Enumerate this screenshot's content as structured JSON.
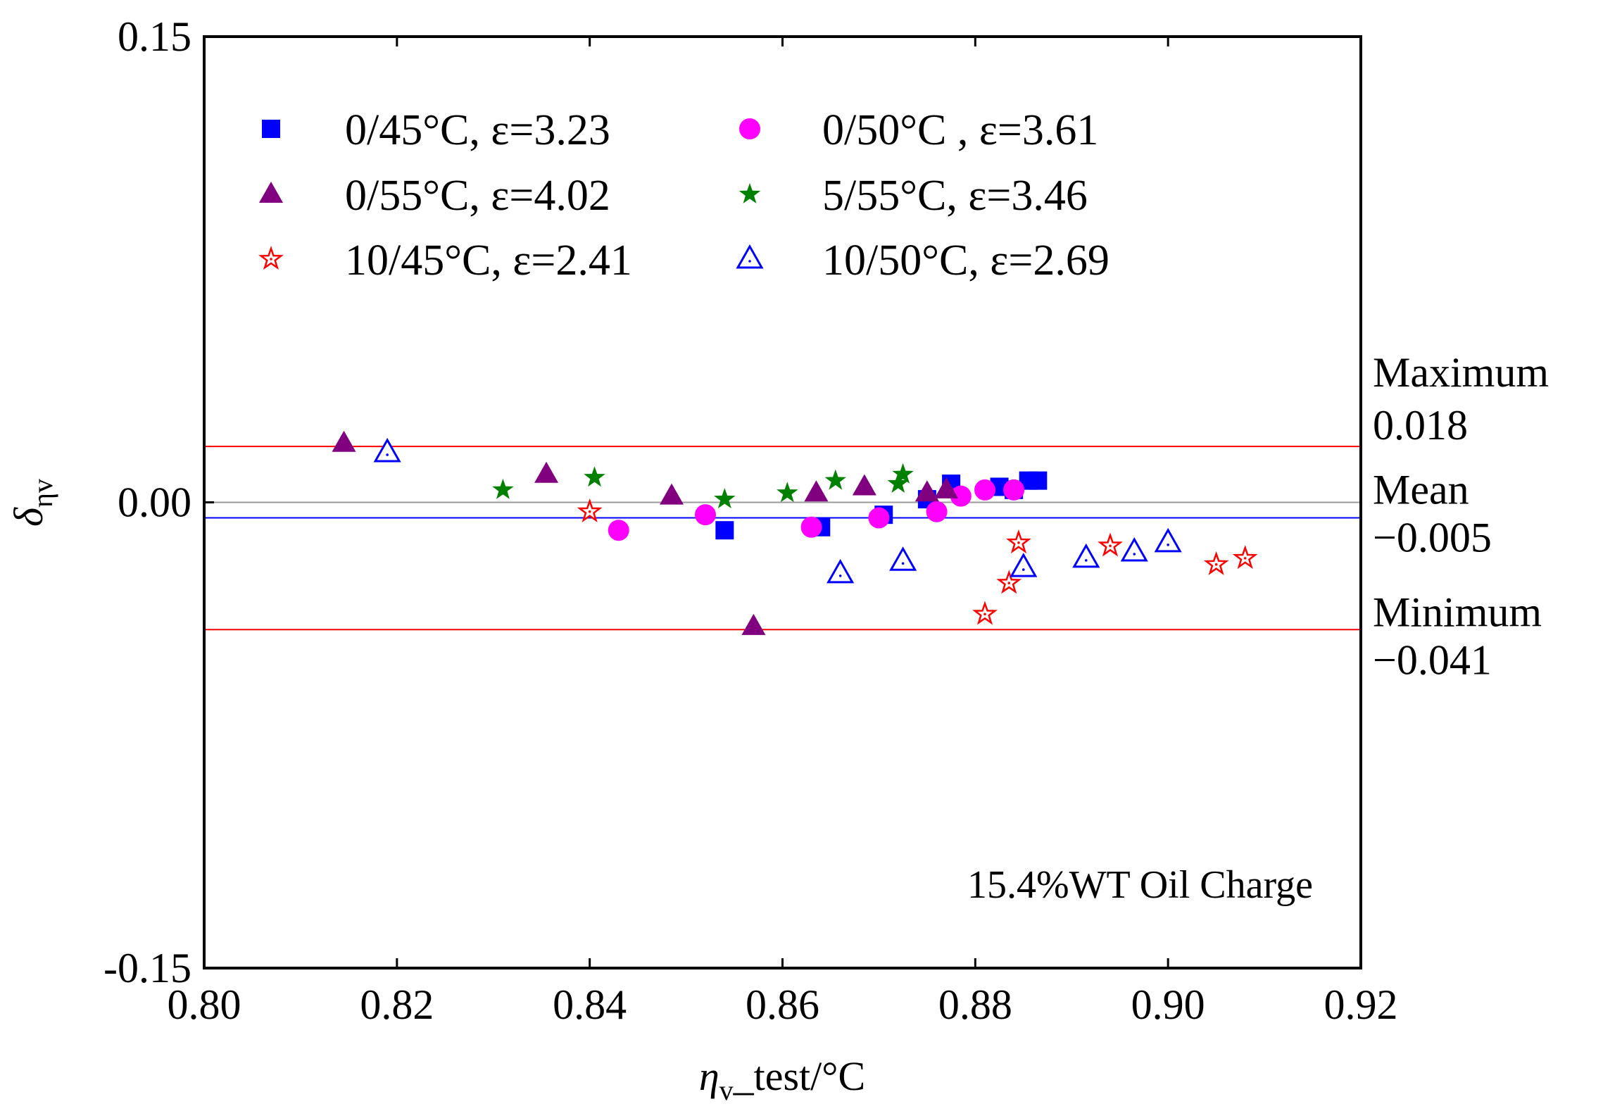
{
  "chart_data": {
    "type": "scatter",
    "title": "",
    "xlabel": "η",
    "xlabel_sub": "v",
    "xlabel_rest": "_test/°C",
    "ylabel": "δ",
    "ylabel_sub": "ηv",
    "xlim": [
      0.8,
      0.92
    ],
    "ylim": [
      -0.15,
      0.15
    ],
    "x_ticks": [
      "0.80",
      "0.82",
      "0.84",
      "0.86",
      "0.88",
      "0.90",
      "0.92"
    ],
    "y_ticks": [
      "0.15",
      "0.00",
      "-0.15"
    ],
    "annotation": "15.4%WT Oil Charge",
    "reference_lines": [
      {
        "name": "Maximum",
        "value": 0.018,
        "value_label": "0.018",
        "color": "#ff0000"
      },
      {
        "name": "Mean",
        "value": -0.005,
        "value_label": "−0.005",
        "color": "#0000ff"
      },
      {
        "name": "Minimum",
        "value": -0.041,
        "value_label": "−0.041",
        "color": "#ff0000"
      }
    ],
    "zero_line": {
      "value": 0.0,
      "color": "#9a9a9a"
    },
    "series": [
      {
        "name": "0/45°C, ε=3.23",
        "marker": "square",
        "filled": true,
        "color": "#0000ff",
        "x": [
          0.854,
          0.864,
          0.8705,
          0.875,
          0.8775,
          0.8825,
          0.884,
          0.8855,
          0.8865
        ],
        "y": [
          -0.009,
          -0.008,
          -0.004,
          0.001,
          0.006,
          0.005,
          0.004,
          0.007,
          0.007
        ]
      },
      {
        "name": "0/50°C , ε=3.61",
        "marker": "circle",
        "filled": true,
        "color": "#ff00ff",
        "x": [
          0.843,
          0.852,
          0.863,
          0.87,
          0.876,
          0.8785,
          0.881,
          0.884
        ],
        "y": [
          -0.009,
          -0.004,
          -0.008,
          -0.005,
          -0.003,
          0.002,
          0.004,
          0.004
        ]
      },
      {
        "name": "0/55°C, ε=4.02",
        "marker": "triangle",
        "filled": true,
        "color": "#800080",
        "x": [
          0.8145,
          0.8355,
          0.8485,
          0.857,
          0.8635,
          0.8685,
          0.875,
          0.877
        ],
        "y": [
          0.019,
          0.009,
          0.002,
          -0.04,
          0.003,
          0.005,
          0.003,
          0.004
        ]
      },
      {
        "name": "5/55°C, ε=3.46",
        "marker": "star",
        "filled": true,
        "color": "#008000",
        "x": [
          0.831,
          0.8405,
          0.854,
          0.8605,
          0.8655,
          0.872,
          0.8725
        ],
        "y": [
          0.004,
          0.008,
          0.001,
          0.003,
          0.007,
          0.006,
          0.009
        ]
      },
      {
        "name": "10/45°C, ε=2.41",
        "marker": "star",
        "filled": false,
        "color": "#ff0000",
        "x": [
          0.84,
          0.881,
          0.8835,
          0.8845,
          0.894,
          0.905,
          0.908
        ],
        "y": [
          -0.003,
          -0.036,
          -0.026,
          -0.013,
          -0.014,
          -0.02,
          -0.018
        ]
      },
      {
        "name": "10/50°C, ε=2.69",
        "marker": "triangle",
        "filled": false,
        "color": "#0000ff",
        "x": [
          0.819,
          0.866,
          0.8725,
          0.885,
          0.8915,
          0.8965,
          0.9
        ],
        "y": [
          0.016,
          -0.023,
          -0.019,
          -0.021,
          -0.018,
          -0.016,
          -0.013
        ]
      }
    ]
  }
}
